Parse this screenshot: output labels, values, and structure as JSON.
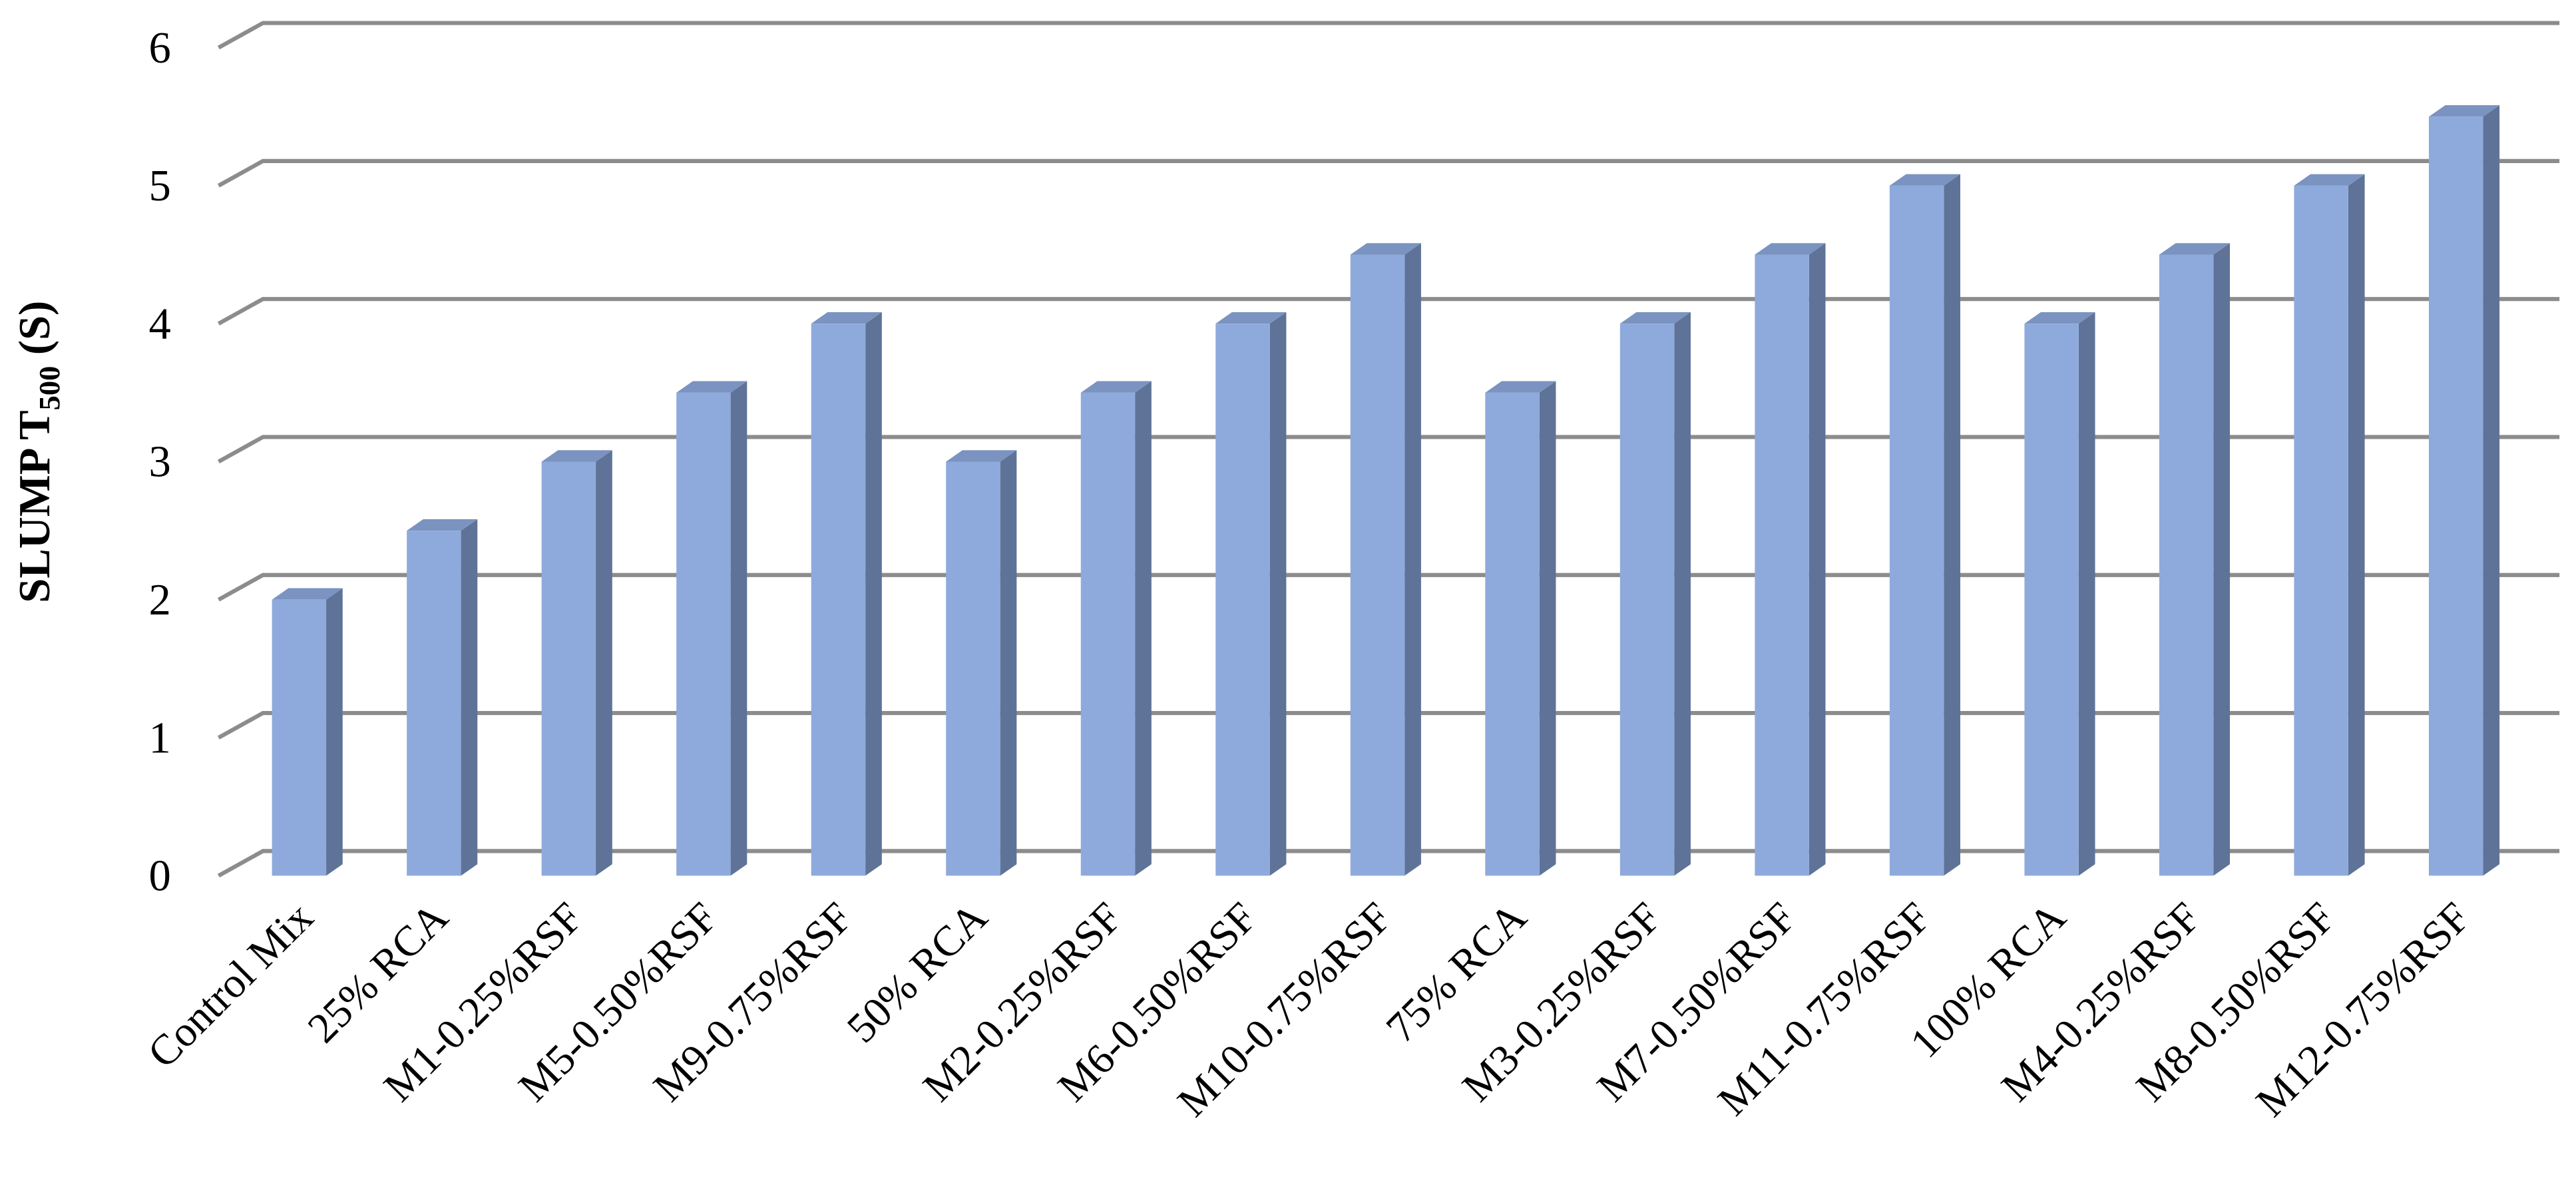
{
  "chart_data": {
    "type": "bar3d",
    "ylabel": [
      "SLUMP T",
      "500",
      " (S)"
    ],
    "categories": [
      "Control Mix",
      "25% RCA",
      "M1-0.25%RSF",
      "M5-0.50%RSF",
      "M9-0.75%RSF",
      "50% RCA",
      "M2-0.25%RSF",
      "M6-0.50%RSF",
      "M10-0.75%RSF",
      "75% RCA",
      "M3-0.25%RSF",
      "M7-0.50%RSF",
      "M11-0.75%RSF",
      "100% RCA",
      "M4-0.25%RSF",
      "M8-0.50%RSF",
      "M12-0.75%RSF"
    ],
    "values": [
      2,
      2.5,
      3,
      3.5,
      4,
      3,
      3.5,
      4,
      4.5,
      3.5,
      4,
      4.5,
      5,
      4,
      4.5,
      5,
      5.5
    ],
    "color": "#8eaadc",
    "ylim": [
      0,
      6
    ],
    "yticks": [
      0,
      1,
      2,
      3,
      4,
      5,
      6
    ],
    "grid": true
  }
}
